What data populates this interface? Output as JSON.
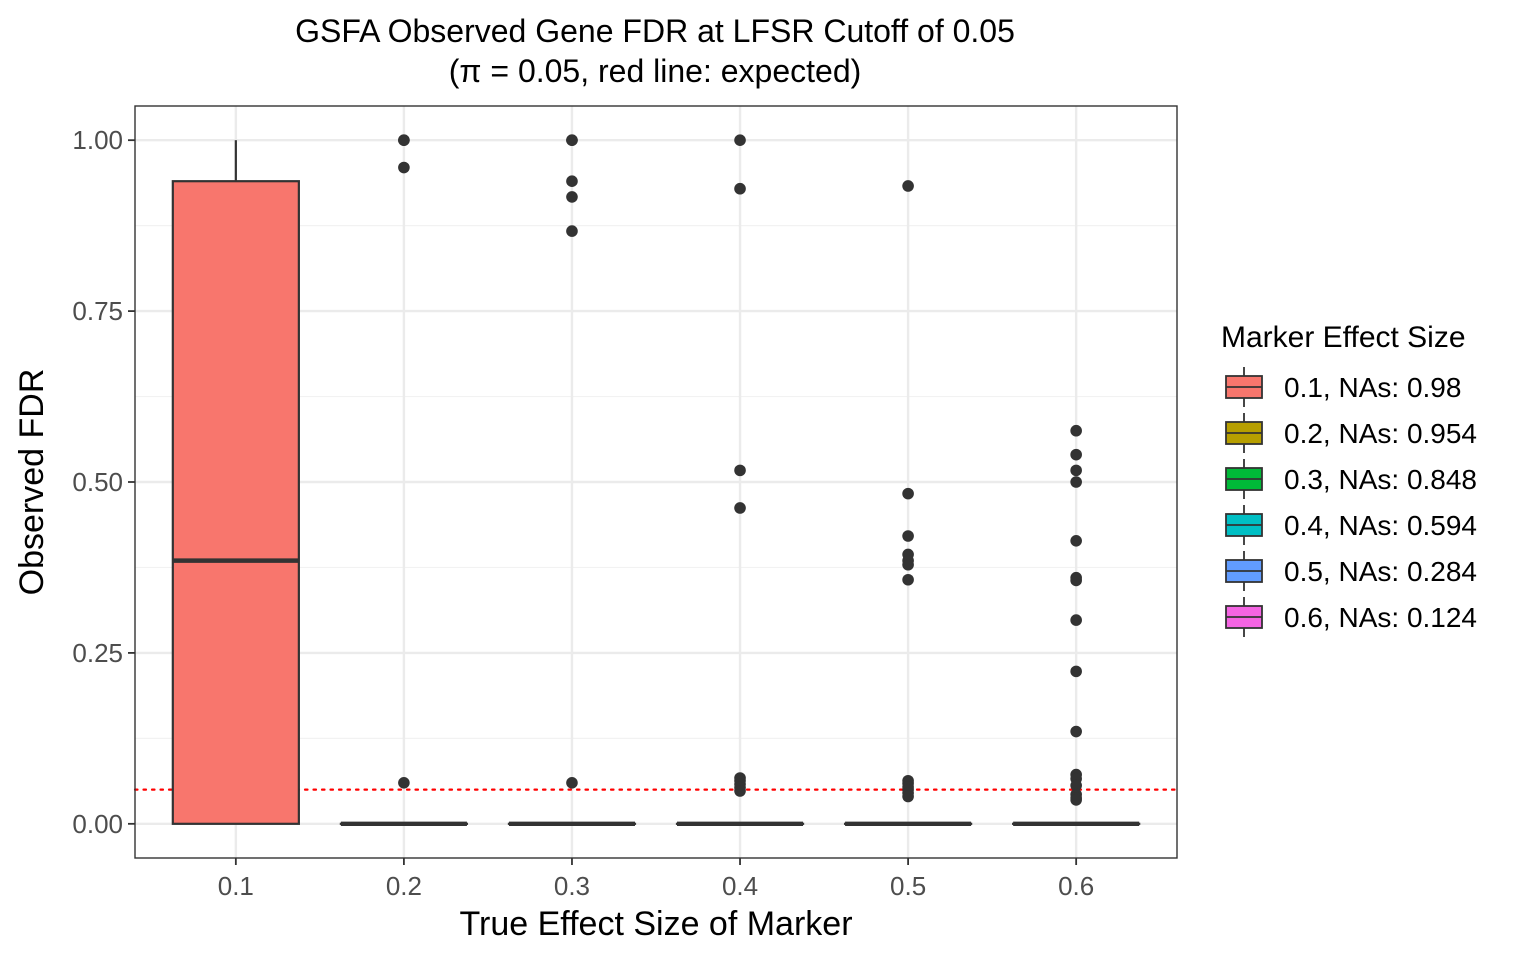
{
  "chart_data": {
    "type": "box",
    "title": "GSFA Observed Gene FDR at LFSR Cutoff of 0.05",
    "subtitle": "(π = 0.05, red line: expected)",
    "xlabel": "True Effect Size of Marker",
    "ylabel": "Observed FDR",
    "categories": [
      "0.1",
      "0.2",
      "0.3",
      "0.4",
      "0.5",
      "0.6"
    ],
    "yticks": [
      "0.00",
      "0.25",
      "0.50",
      "0.75",
      "1.00"
    ],
    "ytick_values": [
      0,
      0.25,
      0.5,
      0.75,
      1.0
    ],
    "ylim": [
      -0.05,
      1.05
    ],
    "grid": true,
    "reference_line": {
      "y": 0.05,
      "color": "#ff0000",
      "style": "dotted"
    },
    "boxes": [
      {
        "category": "0.1",
        "q1": 0.0,
        "median": 0.385,
        "q3": 0.94,
        "whisker_low": 0.0,
        "whisker_high": 1.0,
        "outliers": [],
        "color": "#F8766D"
      },
      {
        "category": "0.2",
        "q1": 0.0,
        "median": 0.0,
        "q3": 0.0,
        "whisker_low": 0.0,
        "whisker_high": 0.0,
        "outliers": [
          1.0,
          1.0,
          0.96,
          0.06
        ],
        "color": "#B79F00"
      },
      {
        "category": "0.3",
        "q1": 0.0,
        "median": 0.0,
        "q3": 0.0,
        "whisker_low": 0.0,
        "whisker_high": 0.0,
        "outliers": [
          1.0,
          1.0,
          0.94,
          0.917,
          0.867,
          0.06
        ],
        "color": "#00BA38"
      },
      {
        "category": "0.4",
        "q1": 0.0,
        "median": 0.0,
        "q3": 0.0,
        "whisker_low": 0.0,
        "whisker_high": 0.0,
        "outliers": [
          1.0,
          0.929,
          0.517,
          0.462,
          0.067,
          0.063,
          0.058,
          0.053,
          0.048
        ],
        "color": "#00BFC4"
      },
      {
        "category": "0.5",
        "q1": 0.0,
        "median": 0.0,
        "q3": 0.0,
        "whisker_low": 0.0,
        "whisker_high": 0.0,
        "outliers": [
          0.933,
          0.483,
          0.421,
          0.394,
          0.385,
          0.379,
          0.357,
          0.063,
          0.059,
          0.054,
          0.05,
          0.045,
          0.04
        ],
        "color": "#619CFF"
      },
      {
        "category": "0.6",
        "q1": 0.0,
        "median": 0.0,
        "q3": 0.0,
        "whisker_low": 0.0,
        "whisker_high": 0.0,
        "outliers": [
          0.575,
          0.54,
          0.517,
          0.5,
          0.414,
          0.36,
          0.356,
          0.298,
          0.223,
          0.135,
          0.072,
          0.066,
          0.056,
          0.043,
          0.038,
          0.035
        ],
        "color": "#F564E3"
      }
    ],
    "legend": {
      "title": "Marker Effect Size",
      "placement": "right",
      "entries": [
        {
          "label": "0.1, NAs: 0.98",
          "color": "#F8766D"
        },
        {
          "label": "0.2, NAs: 0.954",
          "color": "#B79F00"
        },
        {
          "label": "0.3, NAs: 0.848",
          "color": "#00BA38"
        },
        {
          "label": "0.4, NAs: 0.594",
          "color": "#00BFC4"
        },
        {
          "label": "0.5, NAs: 0.284",
          "color": "#619CFF"
        },
        {
          "label": "0.6, NAs: 0.124",
          "color": "#F564E3"
        }
      ]
    }
  }
}
